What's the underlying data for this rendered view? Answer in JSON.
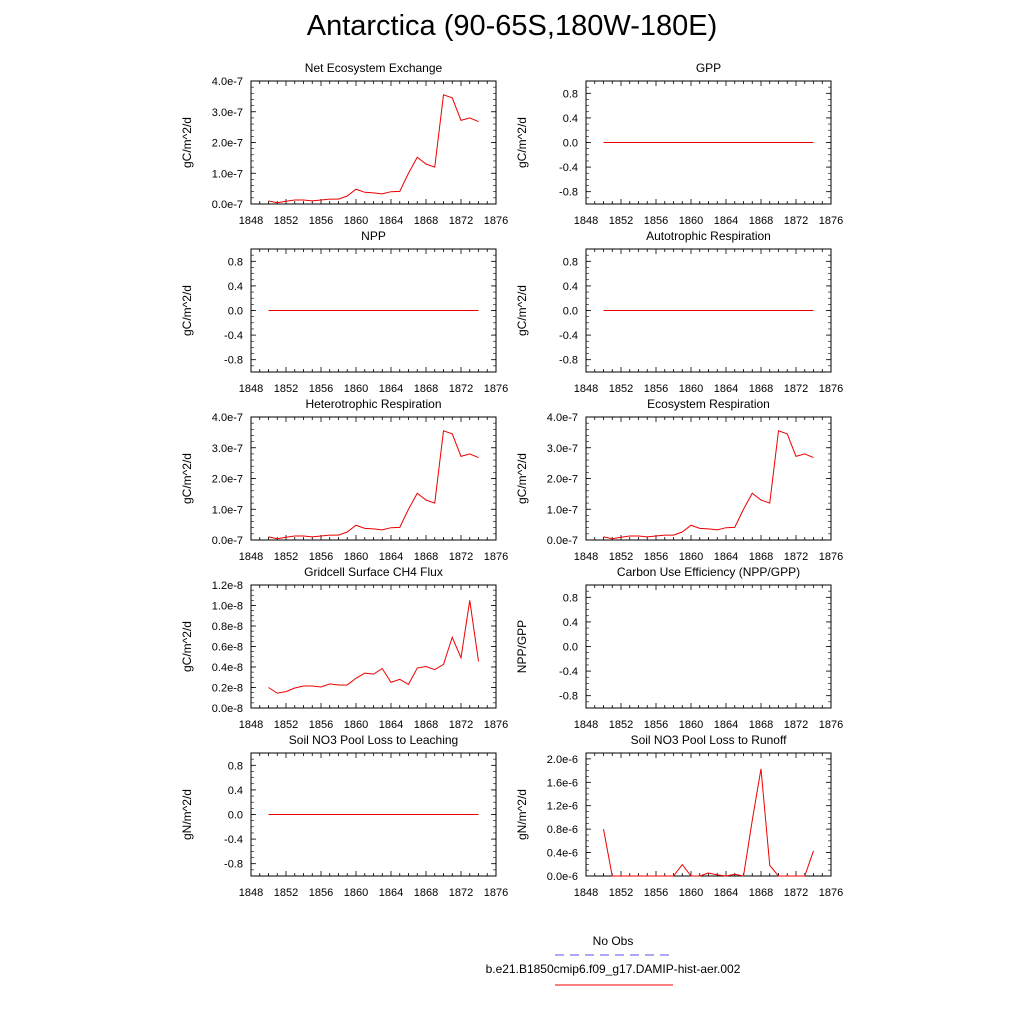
{
  "page_title": "Antarctica (90-65S,180W-180E)",
  "legend": {
    "obs_label": "No Obs",
    "obs_color": "#5555ee",
    "model_label": "b.e21.B1850cmip6.f09_g17.DAMIP-hist-aer.002",
    "model_color": "#ee0000"
  },
  "chart_data": [
    {
      "type": "line",
      "title": "Net Ecosystem Exchange",
      "ylabel": "gC/m^2/d",
      "xlim": [
        1848,
        1876
      ],
      "xticks": [
        "1848",
        "1852",
        "1856",
        "1860",
        "1864",
        "1868",
        "1872",
        "1876"
      ],
      "ylim": [
        0,
        4e-07
      ],
      "yticks": [
        {
          "v": 0,
          "label": "0.0e-7"
        },
        {
          "v": 1e-07,
          "label": "1.0e-7"
        },
        {
          "v": 2e-07,
          "label": "2.0e-7"
        },
        {
          "v": 3e-07,
          "label": "3.0e-7"
        },
        {
          "v": 4e-07,
          "label": "4.0e-7"
        }
      ],
      "yminor": 5,
      "series": [
        {
          "x": [
            1850,
            1851,
            1852,
            1853,
            1854,
            1855,
            1856,
            1857,
            1858,
            1859,
            1860,
            1861,
            1862,
            1863,
            1864,
            1865,
            1866,
            1867,
            1868,
            1869,
            1870,
            1871,
            1872,
            1873,
            1874
          ],
          "y": [
            1e-08,
            4e-09,
            9e-09,
            1.3e-08,
            1.3e-08,
            1e-08,
            1.3e-08,
            1.6e-08,
            1.6e-08,
            2.6e-08,
            4.8e-08,
            3.8e-08,
            3.6e-08,
            3.3e-08,
            4e-08,
            4.1e-08,
            1e-07,
            1.52e-07,
            1.3e-07,
            1.2e-07,
            3.55e-07,
            3.45e-07,
            2.72e-07,
            2.8e-07,
            2.68e-07
          ]
        }
      ]
    },
    {
      "type": "line",
      "title": "GPP",
      "ylabel": "gC/m^2/d",
      "xlim": [
        1848,
        1876
      ],
      "xticks": [
        "1848",
        "1852",
        "1856",
        "1860",
        "1864",
        "1868",
        "1872",
        "1876"
      ],
      "ylim": [
        -1,
        1
      ],
      "yticks": [
        {
          "v": -0.8,
          "label": "-0.8"
        },
        {
          "v": -0.4,
          "label": "-0.4"
        },
        {
          "v": 0,
          "label": "0.0"
        },
        {
          "v": 0.4,
          "label": "0.4"
        },
        {
          "v": 0.8,
          "label": "0.8"
        }
      ],
      "yminor": 4,
      "series": [
        {
          "x": [
            1850,
            1874
          ],
          "y": [
            0,
            0
          ]
        }
      ]
    },
    {
      "type": "line",
      "title": "NPP",
      "ylabel": "gC/m^2/d",
      "xlim": [
        1848,
        1876
      ],
      "xticks": [
        "1848",
        "1852",
        "1856",
        "1860",
        "1864",
        "1868",
        "1872",
        "1876"
      ],
      "ylim": [
        -1,
        1
      ],
      "yticks": [
        {
          "v": -0.8,
          "label": "-0.8"
        },
        {
          "v": -0.4,
          "label": "-0.4"
        },
        {
          "v": 0,
          "label": "0.0"
        },
        {
          "v": 0.4,
          "label": "0.4"
        },
        {
          "v": 0.8,
          "label": "0.8"
        }
      ],
      "yminor": 4,
      "series": [
        {
          "x": [
            1850,
            1874
          ],
          "y": [
            0,
            0
          ]
        }
      ]
    },
    {
      "type": "line",
      "title": "Autotrophic Respiration",
      "ylabel": "gC/m^2/d",
      "xlim": [
        1848,
        1876
      ],
      "xticks": [
        "1848",
        "1852",
        "1856",
        "1860",
        "1864",
        "1868",
        "1872",
        "1876"
      ],
      "ylim": [
        -1,
        1
      ],
      "yticks": [
        {
          "v": -0.8,
          "label": "-0.8"
        },
        {
          "v": -0.4,
          "label": "-0.4"
        },
        {
          "v": 0,
          "label": "0.0"
        },
        {
          "v": 0.4,
          "label": "0.4"
        },
        {
          "v": 0.8,
          "label": "0.8"
        }
      ],
      "yminor": 4,
      "series": [
        {
          "x": [
            1850,
            1874
          ],
          "y": [
            0,
            0
          ]
        }
      ]
    },
    {
      "type": "line",
      "title": "Heterotrophic Respiration",
      "ylabel": "gC/m^2/d",
      "xlim": [
        1848,
        1876
      ],
      "xticks": [
        "1848",
        "1852",
        "1856",
        "1860",
        "1864",
        "1868",
        "1872",
        "1876"
      ],
      "ylim": [
        0,
        4e-07
      ],
      "yticks": [
        {
          "v": 0,
          "label": "0.0e-7"
        },
        {
          "v": 1e-07,
          "label": "1.0e-7"
        },
        {
          "v": 2e-07,
          "label": "2.0e-7"
        },
        {
          "v": 3e-07,
          "label": "3.0e-7"
        },
        {
          "v": 4e-07,
          "label": "4.0e-7"
        }
      ],
      "yminor": 5,
      "series": [
        {
          "x": [
            1850,
            1851,
            1852,
            1853,
            1854,
            1855,
            1856,
            1857,
            1858,
            1859,
            1860,
            1861,
            1862,
            1863,
            1864,
            1865,
            1866,
            1867,
            1868,
            1869,
            1870,
            1871,
            1872,
            1873,
            1874
          ],
          "y": [
            1e-08,
            4e-09,
            9e-09,
            1.3e-08,
            1.3e-08,
            1e-08,
            1.3e-08,
            1.6e-08,
            1.6e-08,
            2.6e-08,
            4.8e-08,
            3.8e-08,
            3.6e-08,
            3.3e-08,
            4e-08,
            4.1e-08,
            1e-07,
            1.52e-07,
            1.3e-07,
            1.2e-07,
            3.55e-07,
            3.45e-07,
            2.72e-07,
            2.8e-07,
            2.68e-07
          ]
        }
      ]
    },
    {
      "type": "line",
      "title": "Ecosystem Respiration",
      "ylabel": "gC/m^2/d",
      "xlim": [
        1848,
        1876
      ],
      "xticks": [
        "1848",
        "1852",
        "1856",
        "1860",
        "1864",
        "1868",
        "1872",
        "1876"
      ],
      "ylim": [
        0,
        4e-07
      ],
      "yticks": [
        {
          "v": 0,
          "label": "0.0e-7"
        },
        {
          "v": 1e-07,
          "label": "1.0e-7"
        },
        {
          "v": 2e-07,
          "label": "2.0e-7"
        },
        {
          "v": 3e-07,
          "label": "3.0e-7"
        },
        {
          "v": 4e-07,
          "label": "4.0e-7"
        }
      ],
      "yminor": 5,
      "series": [
        {
          "x": [
            1850,
            1851,
            1852,
            1853,
            1854,
            1855,
            1856,
            1857,
            1858,
            1859,
            1860,
            1861,
            1862,
            1863,
            1864,
            1865,
            1866,
            1867,
            1868,
            1869,
            1870,
            1871,
            1872,
            1873,
            1874
          ],
          "y": [
            1e-08,
            4e-09,
            9e-09,
            1.3e-08,
            1.3e-08,
            1e-08,
            1.3e-08,
            1.6e-08,
            1.6e-08,
            2.6e-08,
            4.8e-08,
            3.8e-08,
            3.6e-08,
            3.3e-08,
            4e-08,
            4.1e-08,
            1e-07,
            1.52e-07,
            1.3e-07,
            1.2e-07,
            3.55e-07,
            3.45e-07,
            2.72e-07,
            2.8e-07,
            2.68e-07
          ]
        }
      ]
    },
    {
      "type": "line",
      "title": "Gridcell Surface CH4 Flux",
      "ylabel": "gC/m^2/d",
      "xlim": [
        1848,
        1876
      ],
      "xticks": [
        "1848",
        "1852",
        "1856",
        "1860",
        "1864",
        "1868",
        "1872",
        "1876"
      ],
      "ylim": [
        0,
        1.2e-08
      ],
      "yticks": [
        {
          "v": 0,
          "label": "0.0e-8"
        },
        {
          "v": 2e-09,
          "label": "0.2e-8"
        },
        {
          "v": 4e-09,
          "label": "0.4e-8"
        },
        {
          "v": 6e-09,
          "label": "0.6e-8"
        },
        {
          "v": 8e-09,
          "label": "0.8e-8"
        },
        {
          "v": 1e-08,
          "label": "1.0e-8"
        },
        {
          "v": 1.2e-08,
          "label": "1.2e-8"
        }
      ],
      "yminor": 4,
      "series": [
        {
          "x": [
            1850,
            1851,
            1852,
            1853,
            1854,
            1855,
            1856,
            1857,
            1858,
            1859,
            1860,
            1861,
            1862,
            1863,
            1864,
            1865,
            1866,
            1867,
            1868,
            1869,
            1870,
            1871,
            1872,
            1873,
            1874
          ],
          "y": [
            2e-09,
            1.45e-09,
            1.6e-09,
            1.95e-09,
            2.15e-09,
            2.15e-09,
            2.05e-09,
            2.35e-09,
            2.25e-09,
            2.25e-09,
            2.9e-09,
            3.4e-09,
            3.3e-09,
            3.85e-09,
            2.5e-09,
            2.8e-09,
            2.3e-09,
            3.9e-09,
            4.05e-09,
            3.75e-09,
            4.25e-09,
            6.9e-09,
            4.9e-09,
            1.05e-08,
            4.55e-09
          ]
        }
      ]
    },
    {
      "type": "line",
      "title": "Carbon Use Efficiency (NPP/GPP)",
      "ylabel": "NPP/GPP",
      "xlim": [
        1848,
        1876
      ],
      "xticks": [
        "1848",
        "1852",
        "1856",
        "1860",
        "1864",
        "1868",
        "1872",
        "1876"
      ],
      "ylim": [
        -1,
        1
      ],
      "yticks": [
        {
          "v": -0.8,
          "label": "-0.8"
        },
        {
          "v": -0.4,
          "label": "-0.4"
        },
        {
          "v": 0,
          "label": "0.0"
        },
        {
          "v": 0.4,
          "label": "0.4"
        },
        {
          "v": 0.8,
          "label": "0.8"
        }
      ],
      "yminor": 4,
      "series": []
    },
    {
      "type": "line",
      "title": "Soil NO3 Pool Loss to Leaching",
      "ylabel": "gN/m^2/d",
      "xlim": [
        1848,
        1876
      ],
      "xticks": [
        "1848",
        "1852",
        "1856",
        "1860",
        "1864",
        "1868",
        "1872",
        "1876"
      ],
      "ylim": [
        -1,
        1
      ],
      "yticks": [
        {
          "v": -0.8,
          "label": "-0.8"
        },
        {
          "v": -0.4,
          "label": "-0.4"
        },
        {
          "v": 0,
          "label": "0.0"
        },
        {
          "v": 0.4,
          "label": "0.4"
        },
        {
          "v": 0.8,
          "label": "0.8"
        }
      ],
      "yminor": 4,
      "series": [
        {
          "x": [
            1850,
            1874
          ],
          "y": [
            0,
            0
          ]
        }
      ]
    },
    {
      "type": "line",
      "title": "Soil NO3 Pool Loss to Runoff",
      "ylabel": "gN/m^2/d",
      "xlim": [
        1848,
        1876
      ],
      "xticks": [
        "1848",
        "1852",
        "1856",
        "1860",
        "1864",
        "1868",
        "1872",
        "1876"
      ],
      "ylim": [
        0,
        2.1e-06
      ],
      "yticks": [
        {
          "v": 0,
          "label": "0.0e-6"
        },
        {
          "v": 4e-07,
          "label": "0.4e-6"
        },
        {
          "v": 8e-07,
          "label": "0.8e-6"
        },
        {
          "v": 1.2e-06,
          "label": "1.2e-6"
        },
        {
          "v": 1.6e-06,
          "label": "1.6e-6"
        },
        {
          "v": 2e-06,
          "label": "2.0e-6"
        }
      ],
      "yminor": 4,
      "series": [
        {
          "x": [
            1850,
            1851,
            1852,
            1853,
            1854,
            1855,
            1856,
            1857,
            1858,
            1859,
            1860,
            1861,
            1862,
            1863,
            1864,
            1865,
            1866,
            1867,
            1868,
            1869,
            1870,
            1871,
            1872,
            1873,
            1874
          ],
          "y": [
            8e-07,
            0,
            0,
            0,
            0,
            0,
            0,
            0,
            0,
            1.95e-07,
            0,
            0,
            5e-08,
            2e-08,
            0,
            3e-08,
            0,
            9.5e-07,
            1.83e-06,
            1.8e-07,
            0,
            0,
            0,
            0,
            4.3e-07
          ]
        }
      ]
    }
  ]
}
